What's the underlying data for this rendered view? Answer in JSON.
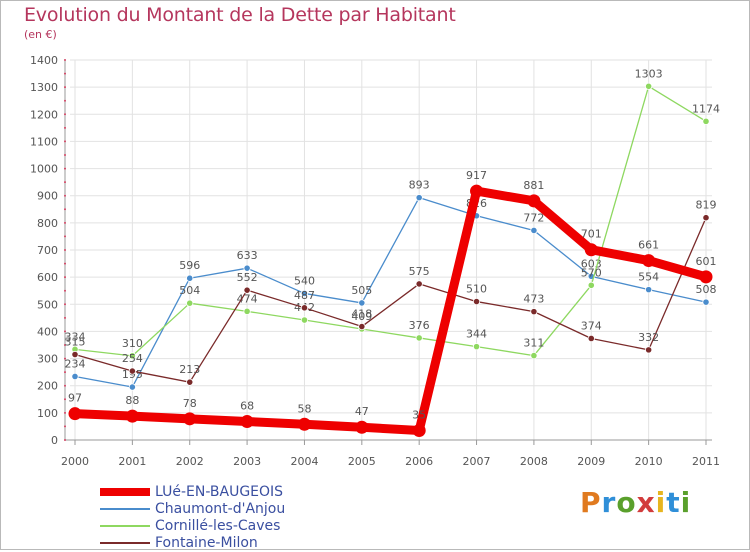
{
  "title": "Evolution du Montant de la Dette par Habitant",
  "subtitle": "(en €)",
  "logo": "Proxiti",
  "logo_colors": [
    "#e07a1f",
    "#2f8fd8",
    "#5aa02c",
    "#d23c3c",
    "#e7b51f",
    "#2f8fd8",
    "#5aa02c"
  ],
  "chart_data": {
    "type": "line",
    "title": "Evolution du Montant de la Dette par Habitant",
    "ylabel": "(en €)",
    "xlabel": "",
    "ylim": [
      0,
      1400
    ],
    "yticks": [
      0,
      100,
      200,
      300,
      400,
      500,
      600,
      700,
      800,
      900,
      1000,
      1100,
      1200,
      1300,
      1400
    ],
    "x": [
      "2000",
      "2001",
      "2002",
      "2003",
      "2004",
      "2005",
      "2006",
      "2007",
      "2008",
      "2009",
      "2010",
      "2011"
    ],
    "grid": true,
    "legend_position": "bottom-left",
    "series": [
      {
        "name": "Chaumont-d'Anjou",
        "color": "#4a8ccc",
        "values": [
          234,
          195,
          596,
          633,
          540,
          505,
          893,
          826,
          772,
          603,
          554,
          508
        ]
      },
      {
        "name": "Cornillé-les-Caves",
        "color": "#8ed860",
        "values": [
          334,
          310,
          504,
          474,
          442,
          409,
          376,
          344,
          311,
          570,
          1303,
          1174
        ]
      },
      {
        "name": "Fontaine-Milon",
        "color": "#7a2a2a",
        "values": [
          315,
          254,
          213,
          552,
          487,
          418,
          575,
          510,
          473,
          374,
          332,
          819
        ]
      },
      {
        "name": "LUé-EN-BAUGEOIS",
        "color": "#ee0000",
        "values": [
          97,
          88,
          78,
          68,
          58,
          47,
          35,
          917,
          881,
          701,
          661,
          601
        ]
      }
    ],
    "legend_order": [
      "LUé-EN-BAUGEOIS",
      "Chaumont-d'Anjou",
      "Cornillé-les-Caves",
      "Fontaine-Milon"
    ]
  }
}
